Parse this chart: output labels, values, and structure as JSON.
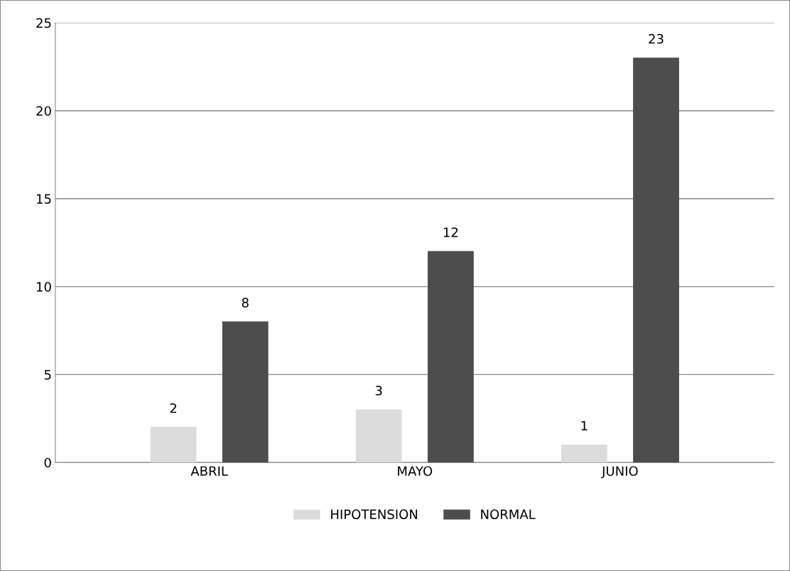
{
  "chart_data": {
    "type": "bar",
    "categories": [
      "ABRIL",
      "MAYO",
      "JUNIO"
    ],
    "series": [
      {
        "name": "HIPOTENSION",
        "color": "#dcdcdc",
        "values": [
          2,
          3,
          1
        ]
      },
      {
        "name": "NORMAL",
        "color": "#4d4d4d",
        "values": [
          8,
          12,
          23
        ]
      }
    ],
    "ylim": [
      0,
      25
    ],
    "yticks": [
      0,
      5,
      10,
      15,
      20,
      25
    ],
    "grid": "y",
    "legend": "bottom",
    "data_labels": true
  }
}
